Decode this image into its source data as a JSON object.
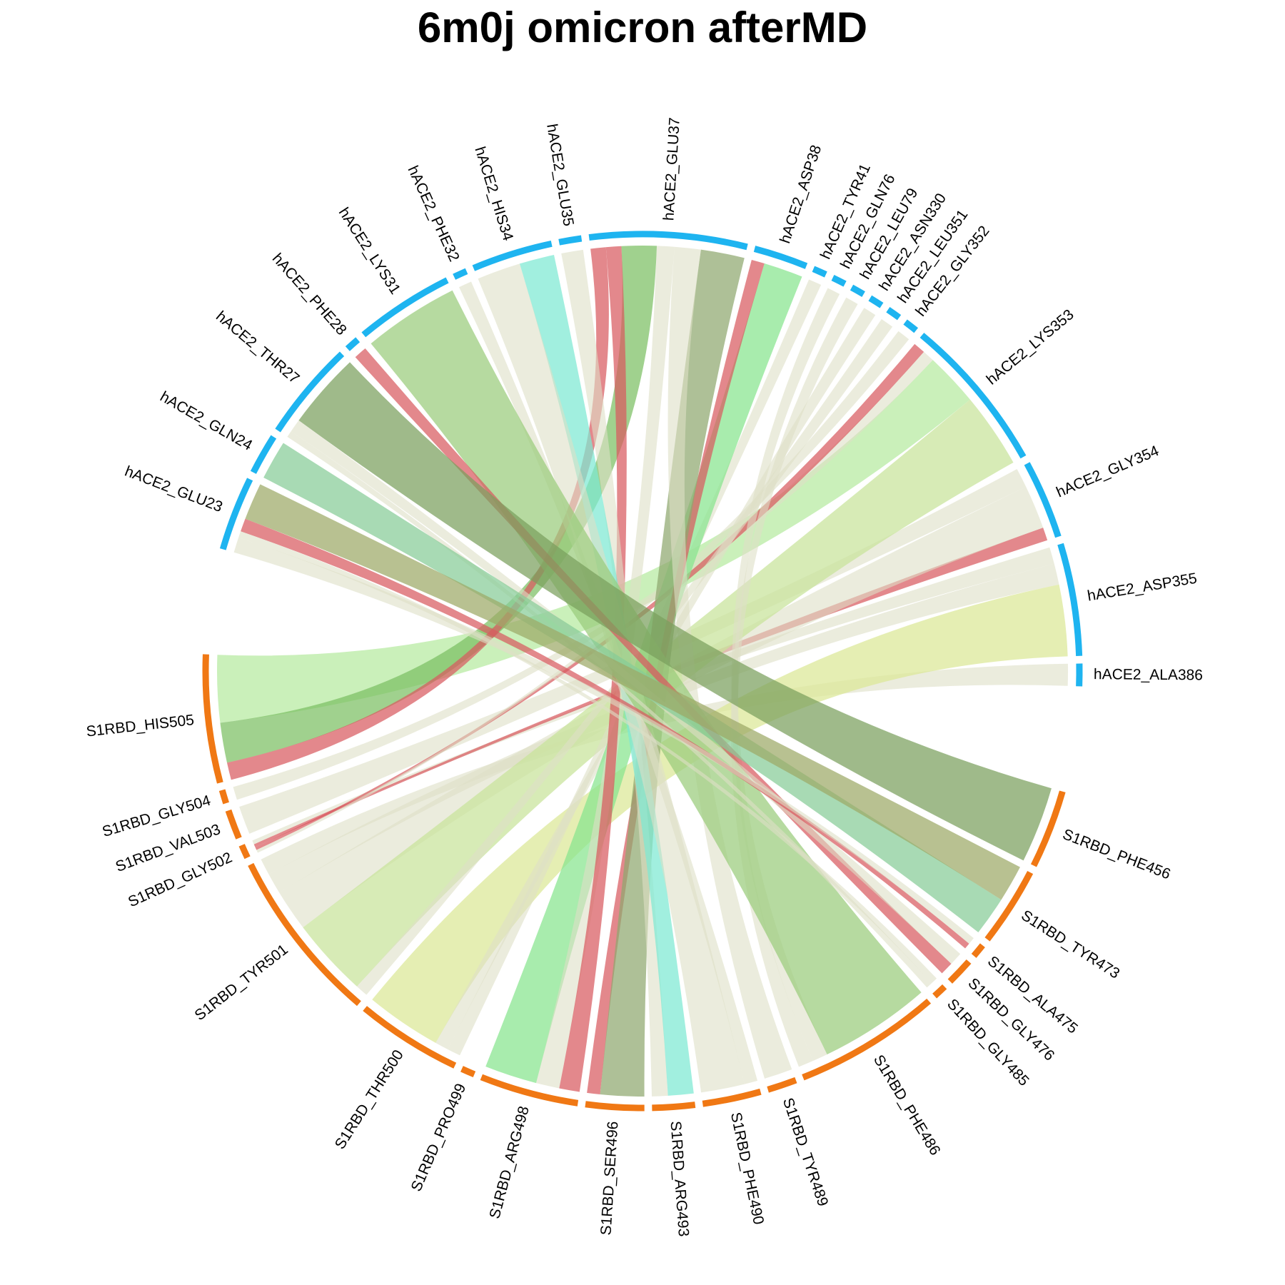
{
  "title": "6m0j omicron afterMD",
  "colors": {
    "hACE2_track": "#1eb4f0",
    "S1RBD_track": "#f07814",
    "weak_link": "#dde0c6",
    "salt_bridge": "#d85a60"
  },
  "sectors": [
    {
      "name": "hACE2_ALA386",
      "group": "hACE2",
      "width": 1
    },
    {
      "name": "hACE2_ASP355",
      "group": "hACE2",
      "width": 5
    },
    {
      "name": "hACE2_GLY354",
      "group": "hACE2",
      "width": 3.5
    },
    {
      "name": "hACE2_LYS353",
      "group": "hACE2",
      "width": 7
    },
    {
      "name": "hACE2_GLY352",
      "group": "hACE2",
      "width": 0.6
    },
    {
      "name": "hACE2_LEU351",
      "group": "hACE2",
      "width": 0.6
    },
    {
      "name": "hACE2_ASN330",
      "group": "hACE2",
      "width": 0.6
    },
    {
      "name": "hACE2_LEU79",
      "group": "hACE2",
      "width": 0.6
    },
    {
      "name": "hACE2_GLN76",
      "group": "hACE2",
      "width": 0.6
    },
    {
      "name": "hACE2_TYR41",
      "group": "hACE2",
      "width": 0.6
    },
    {
      "name": "hACE2_ASP38",
      "group": "hACE2",
      "width": 2.4
    },
    {
      "name": "hACE2_GLU37",
      "group": "hACE2",
      "width": 7
    },
    {
      "name": "hACE2_GLU35",
      "group": "hACE2",
      "width": 1
    },
    {
      "name": "hACE2_HIS34",
      "group": "hACE2",
      "width": 3.6
    },
    {
      "name": "hACE2_PHE32",
      "group": "hACE2",
      "width": 0.6
    },
    {
      "name": "hACE2_LYS31",
      "group": "hACE2",
      "width": 4.4
    },
    {
      "name": "hACE2_PHE28",
      "group": "hACE2",
      "width": 0.6
    },
    {
      "name": "hACE2_THR27",
      "group": "hACE2",
      "width": 4.4
    },
    {
      "name": "hACE2_GLN24",
      "group": "hACE2",
      "width": 1.8
    },
    {
      "name": "hACE2_GLU23",
      "group": "hACE2",
      "width": 3.3
    },
    {
      "name": "S1RBD_HIS505",
      "group": "S1RBD",
      "width": 5.7
    },
    {
      "name": "S1RBD_GLY504",
      "group": "S1RBD",
      "width": 0.6
    },
    {
      "name": "S1RBD_VAL503",
      "group": "S1RBD",
      "width": 1.3
    },
    {
      "name": "S1RBD_GLY502",
      "group": "S1RBD",
      "width": 0.6
    },
    {
      "name": "S1RBD_TYR501",
      "group": "S1RBD",
      "width": 7.8
    },
    {
      "name": "S1RBD_THR500",
      "group": "S1RBD",
      "width": 4.7
    },
    {
      "name": "S1RBD_PRO499",
      "group": "S1RBD",
      "width": 0.6
    },
    {
      "name": "S1RBD_ARG498",
      "group": "S1RBD",
      "width": 4.4
    },
    {
      "name": "S1RBD_SER496",
      "group": "S1RBD",
      "width": 2.6
    },
    {
      "name": "S1RBD_ARG493",
      "group": "S1RBD",
      "width": 1.9
    },
    {
      "name": "S1RBD_PHE490",
      "group": "S1RBD",
      "width": 2.6
    },
    {
      "name": "S1RBD_TYR489",
      "group": "S1RBD",
      "width": 1.3
    },
    {
      "name": "S1RBD_PHE486",
      "group": "S1RBD",
      "width": 6.5
    },
    {
      "name": "S1RBD_GLY485",
      "group": "S1RBD",
      "width": 0.6
    },
    {
      "name": "S1RBD_GLY476",
      "group": "S1RBD",
      "width": 1.2
    },
    {
      "name": "S1RBD_ALA475",
      "group": "S1RBD",
      "width": 0.6
    },
    {
      "name": "S1RBD_TYR473",
      "group": "S1RBD",
      "width": 3.5
    },
    {
      "name": "S1RBD_PHE456",
      "group": "S1RBD",
      "width": 3.5
    }
  ],
  "links": [
    {
      "from": "hACE2_ALA386",
      "to": "S1RBD_TYR501",
      "value": 0.8,
      "color": "#dde0c6"
    },
    {
      "from": "hACE2_ASP355",
      "to": "S1RBD_THR500",
      "value": 3.4,
      "color": "#dbe796"
    },
    {
      "from": "hACE2_ASP355",
      "to": "S1RBD_TYR501",
      "value": 1.0,
      "color": "#dde0c6"
    },
    {
      "from": "hACE2_ASP355",
      "to": "S1RBD_GLY502",
      "value": 0.8,
      "color": "#dde0c6"
    },
    {
      "from": "hACE2_GLY354",
      "to": "S1RBD_GLY502",
      "value": 0.6,
      "color": "#d85a60"
    },
    {
      "from": "hACE2_GLY354",
      "to": "S1RBD_TYR501",
      "value": 2.0,
      "color": "#dde0c6"
    },
    {
      "from": "hACE2_GLY354",
      "to": "S1RBD_VAL503",
      "value": 0.9,
      "color": "#dde0c6"
    },
    {
      "from": "hACE2_LYS353",
      "to": "S1RBD_TYR501",
      "value": 3.8,
      "color": "#c7e39a"
    },
    {
      "from": "hACE2_LYS353",
      "to": "S1RBD_HIS505",
      "value": 2.7,
      "color": "#b6eaa0"
    },
    {
      "from": "hACE2_LYS353",
      "to": "S1RBD_GLY504",
      "value": 0.6,
      "color": "#dde0c6"
    },
    {
      "from": "hACE2_LYS353",
      "to": "S1RBD_GLY502",
      "value": 0.6,
      "color": "#d85a60"
    },
    {
      "from": "hACE2_GLY352",
      "to": "S1RBD_GLY502",
      "value": 0.6,
      "color": "#dde0c6"
    },
    {
      "from": "hACE2_LEU351",
      "to": "S1RBD_TYR501",
      "value": 0.6,
      "color": "#dde0c6"
    },
    {
      "from": "hACE2_ASN330",
      "to": "S1RBD_THR500",
      "value": 0.6,
      "color": "#dde0c6"
    },
    {
      "from": "hACE2_LEU79",
      "to": "S1RBD_PHE486",
      "value": 0.6,
      "color": "#dde0c6"
    },
    {
      "from": "hACE2_GLN76",
      "to": "S1RBD_PHE486",
      "value": 0.6,
      "color": "#dde0c6"
    },
    {
      "from": "hACE2_TYR41",
      "to": "S1RBD_THR500",
      "value": 0.6,
      "color": "#dde0c6"
    },
    {
      "from": "hACE2_ASP38",
      "to": "S1RBD_ARG498",
      "value": 1.8,
      "color": "#86e58e"
    },
    {
      "from": "hACE2_ASP38",
      "to": "S1RBD_SER496",
      "value": 0.6,
      "color": "#d85a60"
    },
    {
      "from": "hACE2_GLU37",
      "to": "S1RBD_SER496",
      "value": 2.0,
      "color": "#8fa86f"
    },
    {
      "from": "hACE2_GLU37",
      "to": "S1RBD_TYR489",
      "value": 1.2,
      "color": "#dde0c6"
    },
    {
      "from": "hACE2_GLU37",
      "to": "S1RBD_ARG498",
      "value": 0.8,
      "color": "#dde0c6"
    },
    {
      "from": "hACE2_GLU37",
      "to": "S1RBD_HIS505",
      "value": 1.6,
      "color": "#7cbf62"
    },
    {
      "from": "hACE2_GLU37",
      "to": "S1RBD_ARG498",
      "value": 0.7,
      "color": "#d85a60"
    },
    {
      "from": "hACE2_GLU37",
      "to": "S1RBD_HIS505",
      "value": 0.7,
      "color": "#d85a60"
    },
    {
      "from": "hACE2_GLU35",
      "to": "S1RBD_ARG493",
      "value": 1.0,
      "color": "#dde0c6"
    },
    {
      "from": "hACE2_HIS34",
      "to": "S1RBD_ARG493",
      "value": 1.6,
      "color": "#7de9d3"
    },
    {
      "from": "hACE2_HIS34",
      "to": "S1RBD_PHE490",
      "value": 2.0,
      "color": "#dde0c6"
    },
    {
      "from": "hACE2_PHE32",
      "to": "S1RBD_PHE490",
      "value": 0.6,
      "color": "#dde0c6"
    },
    {
      "from": "hACE2_LYS31",
      "to": "S1RBD_PHE486",
      "value": 4.4,
      "color": "#9acc7c"
    },
    {
      "from": "hACE2_PHE28",
      "to": "S1RBD_GLY476",
      "value": 0.6,
      "color": "#d85a60"
    },
    {
      "from": "hACE2_THR27",
      "to": "S1RBD_PHE456",
      "value": 3.5,
      "color": "#7aa05d"
    },
    {
      "from": "hACE2_THR27",
      "to": "S1RBD_GLY476",
      "value": 0.6,
      "color": "#dde0c6"
    },
    {
      "from": "hACE2_THR27",
      "to": "S1RBD_GLY485",
      "value": 0.3,
      "color": "#dde0c6"
    },
    {
      "from": "hACE2_GLN24",
      "to": "S1RBD_TYR473",
      "value": 1.8,
      "color": "#86cc97"
    },
    {
      "from": "hACE2_GLU23",
      "to": "S1RBD_TYR473",
      "value": 1.7,
      "color": "#9da966"
    },
    {
      "from": "hACE2_GLU23",
      "to": "S1RBD_ALA475",
      "value": 0.6,
      "color": "#d85a60"
    },
    {
      "from": "hACE2_GLU23",
      "to": "S1RBD_GLY485",
      "value": 0.3,
      "color": "#dde0c6"
    },
    {
      "from": "hACE2_GLU23",
      "to": "S1RBD_ALA475",
      "value": 0.7,
      "color": "#dde0c6"
    }
  ]
}
